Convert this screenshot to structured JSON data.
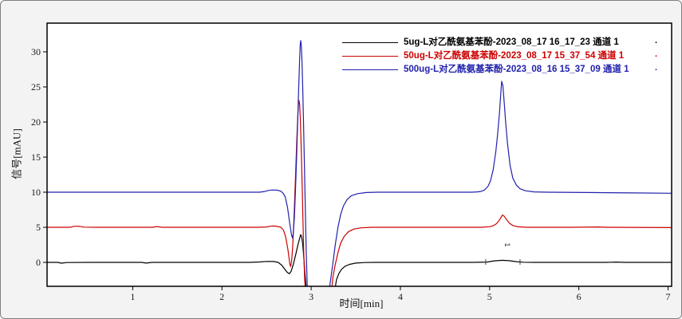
{
  "window": {
    "background": "#f3f3f3",
    "border_color": "#7f7f7f",
    "plot_background": "#ffffff",
    "frame_color": "#000000"
  },
  "chart_data": {
    "type": "line",
    "title": "",
    "xlabel": "时间[min]",
    "ylabel": "信号[mAU]",
    "xlim": [
      0.04,
      7.04
    ],
    "ylim": [
      -3.41,
      34.09
    ],
    "xticks": [
      1,
      2,
      3,
      4,
      5,
      6,
      7
    ],
    "yticks": [
      0,
      5,
      10,
      15,
      20,
      25,
      30
    ],
    "grid": false,
    "legend_position": "inside-top-center",
    "legend_trailing_mark": ".",
    "series": [
      {
        "name": "5ug-L对乙酰氨基苯酚-2023_08_17 16_17_23 通道 1",
        "color": "#000000",
        "baseline_mau": 0,
        "injection_peak": {
          "time_min": 2.88,
          "apex_mau": 4.0,
          "pre_dip_mau": -1.6
        },
        "analyte_peak": {
          "time_min": 5.14,
          "apex_mau": 0.3
        },
        "points": [
          [
            0.04,
            0
          ],
          [
            0.16,
            0
          ],
          [
            0.2,
            -0.12
          ],
          [
            0.26,
            -0.02
          ],
          [
            0.5,
            0
          ],
          [
            0.8,
            0
          ],
          [
            1.1,
            0
          ],
          [
            1.15,
            -0.1
          ],
          [
            1.22,
            0
          ],
          [
            1.6,
            0
          ],
          [
            2.0,
            0
          ],
          [
            2.3,
            0
          ],
          [
            2.42,
            0.06
          ],
          [
            2.5,
            0.13
          ],
          [
            2.58,
            0.12
          ],
          [
            2.63,
            0
          ],
          [
            2.67,
            -0.4
          ],
          [
            2.7,
            -0.9
          ],
          [
            2.73,
            -1.4
          ],
          [
            2.755,
            -1.62
          ],
          [
            2.775,
            -1.3
          ],
          [
            2.8,
            -0.3
          ],
          [
            2.825,
            1.0
          ],
          [
            2.85,
            2.4
          ],
          [
            2.87,
            3.4
          ],
          [
            2.883,
            3.95
          ],
          [
            2.893,
            3.7
          ],
          [
            2.905,
            2.6
          ],
          [
            2.917,
            0.8
          ],
          [
            2.928,
            -1.2
          ],
          [
            2.94,
            -3.0
          ],
          [
            2.952,
            -5.0
          ],
          [
            3.25,
            -5.0
          ],
          [
            3.285,
            -2.4
          ],
          [
            3.31,
            -1.6
          ],
          [
            3.34,
            -1.0
          ],
          [
            3.38,
            -0.55
          ],
          [
            3.43,
            -0.28
          ],
          [
            3.5,
            -0.1
          ],
          [
            3.6,
            -0.02
          ],
          [
            3.72,
            0
          ],
          [
            4.0,
            0
          ],
          [
            4.4,
            0
          ],
          [
            4.8,
            0
          ],
          [
            4.97,
            0.04
          ],
          [
            5.05,
            0.22
          ],
          [
            5.14,
            0.3
          ],
          [
            5.22,
            0.24
          ],
          [
            5.3,
            0.1
          ],
          [
            5.38,
            0.02
          ],
          [
            5.5,
            0
          ],
          [
            5.9,
            0
          ],
          [
            6.3,
            0
          ],
          [
            6.42,
            0.05
          ],
          [
            6.52,
            0
          ],
          [
            7.04,
            0
          ]
        ]
      },
      {
        "name": "50ug-L对乙酰氨基苯酚-2023_08_17 15_37_54 通道 1",
        "color": "#cc0000",
        "baseline_mau": 5,
        "injection_peak": {
          "time_min": 2.87,
          "apex_mau": 23.1,
          "pre_dip_mau": -0.6
        },
        "analyte_peak": {
          "time_min": 5.14,
          "apex_mau": 6.8
        },
        "points": [
          [
            0.04,
            5.0
          ],
          [
            0.3,
            5.0
          ],
          [
            0.34,
            5.13
          ],
          [
            0.4,
            5.15
          ],
          [
            0.45,
            5.02
          ],
          [
            0.6,
            5.0
          ],
          [
            1.0,
            5.0
          ],
          [
            1.22,
            5.0
          ],
          [
            1.27,
            5.1
          ],
          [
            1.33,
            5.0
          ],
          [
            1.7,
            5.0
          ],
          [
            2.1,
            5.0
          ],
          [
            2.4,
            5.0
          ],
          [
            2.5,
            5.05
          ],
          [
            2.54,
            5.15
          ],
          [
            2.58,
            5.18
          ],
          [
            2.62,
            5.12
          ],
          [
            2.66,
            5.0
          ],
          [
            2.69,
            4.6
          ],
          [
            2.715,
            3.6
          ],
          [
            2.74,
            1.8
          ],
          [
            2.76,
            -0.2
          ],
          [
            2.77,
            -0.6
          ],
          [
            2.782,
            0.3
          ],
          [
            2.795,
            2.8
          ],
          [
            2.81,
            7.0
          ],
          [
            2.824,
            12.0
          ],
          [
            2.836,
            16.5
          ],
          [
            2.847,
            20.0
          ],
          [
            2.856,
            22.3
          ],
          [
            2.863,
            23.1
          ],
          [
            2.87,
            22.6
          ],
          [
            2.878,
            20.5
          ],
          [
            2.888,
            16.5
          ],
          [
            2.898,
            11.5
          ],
          [
            2.908,
            6.0
          ],
          [
            2.918,
            1.0
          ],
          [
            2.928,
            -2.5
          ],
          [
            2.938,
            -5.0
          ],
          [
            3.22,
            -5.0
          ],
          [
            3.245,
            -2.0
          ],
          [
            3.27,
            -0.3
          ],
          [
            3.3,
            1.4
          ],
          [
            3.33,
            2.7
          ],
          [
            3.37,
            3.7
          ],
          [
            3.42,
            4.4
          ],
          [
            3.48,
            4.75
          ],
          [
            3.56,
            4.92
          ],
          [
            3.68,
            5.0
          ],
          [
            4.1,
            5.0
          ],
          [
            4.5,
            5.0
          ],
          [
            4.9,
            5.0
          ],
          [
            5.0,
            5.08
          ],
          [
            5.04,
            5.22
          ],
          [
            5.08,
            5.55
          ],
          [
            5.11,
            6.05
          ],
          [
            5.13,
            6.45
          ],
          [
            5.145,
            6.75
          ],
          [
            5.16,
            6.62
          ],
          [
            5.19,
            6.1
          ],
          [
            5.22,
            5.6
          ],
          [
            5.26,
            5.25
          ],
          [
            5.32,
            5.07
          ],
          [
            5.42,
            5.0
          ],
          [
            5.9,
            5.0
          ],
          [
            6.22,
            5.05
          ],
          [
            6.32,
            5.0
          ],
          [
            7.04,
            4.95
          ]
        ]
      },
      {
        "name": "500ug-L对乙酰氨基苯酚-2023_08_16 15_37_09 通道 1",
        "color": "#2121ac",
        "baseline_mau": 10,
        "injection_peak": {
          "time_min": 2.88,
          "apex_mau": 31.6,
          "pre_dip_mau": 3.5
        },
        "analyte_peak": {
          "time_min": 5.14,
          "apex_mau": 25.9
        },
        "points": [
          [
            0.04,
            10.0
          ],
          [
            0.6,
            10.0
          ],
          [
            1.2,
            10.0
          ],
          [
            1.8,
            10.0
          ],
          [
            2.2,
            10.0
          ],
          [
            2.42,
            10.0
          ],
          [
            2.48,
            10.1
          ],
          [
            2.52,
            10.25
          ],
          [
            2.57,
            10.32
          ],
          [
            2.62,
            10.28
          ],
          [
            2.66,
            10.15
          ],
          [
            2.69,
            9.8
          ],
          [
            2.71,
            9.3
          ],
          [
            2.735,
            7.8
          ],
          [
            2.76,
            5.5
          ],
          [
            2.78,
            3.9
          ],
          [
            2.79,
            3.5
          ],
          [
            2.8,
            4.1
          ],
          [
            2.812,
            6.5
          ],
          [
            2.825,
            10.5
          ],
          [
            2.838,
            15.5
          ],
          [
            2.85,
            20.5
          ],
          [
            2.861,
            25.0
          ],
          [
            2.87,
            28.8
          ],
          [
            2.877,
            30.9
          ],
          [
            2.883,
            31.6
          ],
          [
            2.889,
            31.0
          ],
          [
            2.896,
            29.0
          ],
          [
            2.905,
            25.0
          ],
          [
            2.915,
            19.5
          ],
          [
            2.925,
            13.5
          ],
          [
            2.935,
            7.5
          ],
          [
            2.945,
            1.5
          ],
          [
            2.955,
            -3.0
          ],
          [
            2.963,
            -5.0
          ],
          [
            3.19,
            -5.0
          ],
          [
            3.215,
            -2.8
          ],
          [
            3.24,
            -0.5
          ],
          [
            3.27,
            2.5
          ],
          [
            3.3,
            5.0
          ],
          [
            3.33,
            6.8
          ],
          [
            3.36,
            8.0
          ],
          [
            3.4,
            8.9
          ],
          [
            3.45,
            9.5
          ],
          [
            3.52,
            9.8
          ],
          [
            3.62,
            9.95
          ],
          [
            3.75,
            10.0
          ],
          [
            4.2,
            10.0
          ],
          [
            4.6,
            10.0
          ],
          [
            4.8,
            10.0
          ],
          [
            4.86,
            10.05
          ],
          [
            4.9,
            10.1
          ],
          [
            4.94,
            10.3
          ],
          [
            4.98,
            10.8
          ],
          [
            5.01,
            11.6
          ],
          [
            5.04,
            13.2
          ],
          [
            5.07,
            15.8
          ],
          [
            5.09,
            18.3
          ],
          [
            5.11,
            21.2
          ],
          [
            5.125,
            24.0
          ],
          [
            5.135,
            25.8
          ],
          [
            5.148,
            25.2
          ],
          [
            5.16,
            23.4
          ],
          [
            5.18,
            20.0
          ],
          [
            5.2,
            17.0
          ],
          [
            5.23,
            13.8
          ],
          [
            5.26,
            12.0
          ],
          [
            5.3,
            11.0
          ],
          [
            5.34,
            10.5
          ],
          [
            5.4,
            10.2
          ],
          [
            5.5,
            10.05
          ],
          [
            5.65,
            10.0
          ],
          [
            6.1,
            9.95
          ],
          [
            6.6,
            9.9
          ],
          [
            7.04,
            9.85
          ]
        ]
      }
    ],
    "annotations": [
      {
        "type": "peak-number",
        "text": "1",
        "x_min": 5.17,
        "y_mau": 2.8,
        "rotation_deg": 90,
        "color": "#333333"
      }
    ],
    "integration_marks": [
      {
        "x_min": 4.956,
        "y_mau": 0
      },
      {
        "x_min": 5.341,
        "y_mau": 0
      }
    ]
  }
}
